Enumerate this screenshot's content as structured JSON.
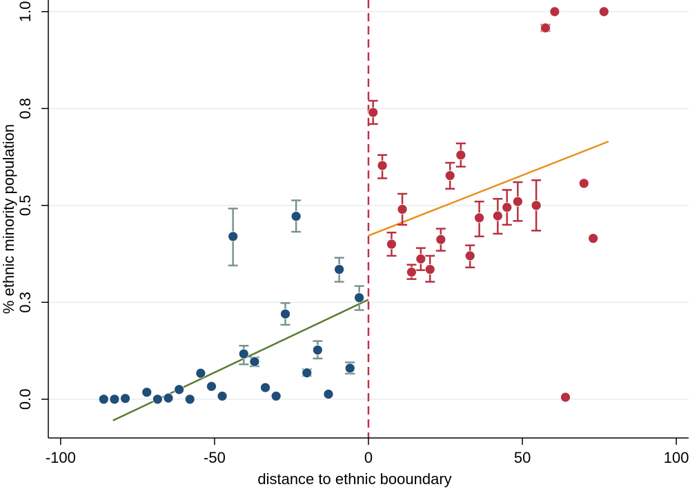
{
  "chart_data": {
    "type": "scatter",
    "title": "",
    "xlabel": "distance to ethnic booundary",
    "ylabel": "% ethnic minority population",
    "xlim": [
      -104,
      104
    ],
    "ylim": [
      -0.1,
      1.03
    ],
    "x_ticks": [
      -100,
      -50,
      0,
      50,
      100
    ],
    "x_tick_labels": [
      "-100",
      "-50",
      "0",
      "50",
      "100"
    ],
    "y_ticks": [
      0,
      0.25,
      0.5,
      0.75,
      1.0
    ],
    "y_tick_labels": [
      "0.0",
      "0.3",
      "0.5",
      "0.8",
      "1.0"
    ],
    "grid": "horizontal",
    "cutoff": 0,
    "colors": {
      "left_marker": "#1f4e79",
      "left_errorbar": "#7a9490",
      "left_fit": "#5a7a2e",
      "right_marker": "#b8303f",
      "right_errorbar": "#b8303f",
      "right_fit": "#e8901a",
      "cutoff_line": "#c0304a",
      "grid": "#e6ecef"
    },
    "series": [
      {
        "side": "left",
        "points": [
          {
            "x": -86,
            "y": 0.0,
            "lo": null,
            "hi": null
          },
          {
            "x": -82.5,
            "y": 0.0,
            "lo": null,
            "hi": null
          },
          {
            "x": -79,
            "y": 0.002,
            "lo": null,
            "hi": null
          },
          {
            "x": -72,
            "y": 0.018,
            "lo": null,
            "hi": null
          },
          {
            "x": -68.5,
            "y": 0.0,
            "lo": null,
            "hi": null
          },
          {
            "x": -65,
            "y": 0.003,
            "lo": null,
            "hi": null
          },
          {
            "x": -61.5,
            "y": 0.025,
            "lo": null,
            "hi": null
          },
          {
            "x": -58,
            "y": 0.0,
            "lo": null,
            "hi": null
          },
          {
            "x": -54.5,
            "y": 0.067,
            "lo": null,
            "hi": null
          },
          {
            "x": -51,
            "y": 0.033,
            "lo": null,
            "hi": null
          },
          {
            "x": -47.5,
            "y": 0.008,
            "lo": null,
            "hi": null
          },
          {
            "x": -44,
            "y": 0.42,
            "lo": 0.345,
            "hi": 0.492
          },
          {
            "x": -40.5,
            "y": 0.117,
            "lo": 0.09,
            "hi": 0.138
          },
          {
            "x": -37,
            "y": 0.097,
            "lo": 0.085,
            "hi": 0.108
          },
          {
            "x": -33.5,
            "y": 0.03,
            "lo": null,
            "hi": null
          },
          {
            "x": -30,
            "y": 0.008,
            "lo": null,
            "hi": null
          },
          {
            "x": -27,
            "y": 0.22,
            "lo": 0.192,
            "hi": 0.248
          },
          {
            "x": -23.5,
            "y": 0.472,
            "lo": 0.432,
            "hi": 0.513
          },
          {
            "x": -20,
            "y": 0.068,
            "lo": 0.06,
            "hi": 0.077
          },
          {
            "x": -16.5,
            "y": 0.127,
            "lo": 0.105,
            "hi": 0.15
          },
          {
            "x": -13,
            "y": 0.013,
            "lo": null,
            "hi": null
          },
          {
            "x": -9.5,
            "y": 0.335,
            "lo": 0.303,
            "hi": 0.365
          },
          {
            "x": -6,
            "y": 0.08,
            "lo": 0.066,
            "hi": 0.095
          },
          {
            "x": -3,
            "y": 0.262,
            "lo": 0.23,
            "hi": 0.292
          }
        ],
        "fit": {
          "x": [
            -83,
            0
          ],
          "y": [
            -0.055,
            0.257
          ]
        }
      },
      {
        "side": "right",
        "points": [
          {
            "x": 1.5,
            "y": 0.74,
            "lo": 0.71,
            "hi": 0.77
          },
          {
            "x": 4.5,
            "y": 0.603,
            "lo": 0.57,
            "hi": 0.63
          },
          {
            "x": 7.5,
            "y": 0.4,
            "lo": 0.37,
            "hi": 0.43
          },
          {
            "x": 11,
            "y": 0.49,
            "lo": 0.45,
            "hi": 0.53
          },
          {
            "x": 14,
            "y": 0.328,
            "lo": 0.31,
            "hi": 0.347
          },
          {
            "x": 17,
            "y": 0.362,
            "lo": 0.333,
            "hi": 0.39
          },
          {
            "x": 20,
            "y": 0.335,
            "lo": 0.303,
            "hi": 0.37
          },
          {
            "x": 23.5,
            "y": 0.412,
            "lo": 0.383,
            "hi": 0.44
          },
          {
            "x": 26.5,
            "y": 0.577,
            "lo": 0.543,
            "hi": 0.61
          },
          {
            "x": 30,
            "y": 0.63,
            "lo": 0.6,
            "hi": 0.66
          },
          {
            "x": 33,
            "y": 0.37,
            "lo": 0.34,
            "hi": 0.397
          },
          {
            "x": 36,
            "y": 0.468,
            "lo": 0.42,
            "hi": 0.51
          },
          {
            "x": 42,
            "y": 0.473,
            "lo": 0.427,
            "hi": 0.517
          },
          {
            "x": 45,
            "y": 0.495,
            "lo": 0.45,
            "hi": 0.54
          },
          {
            "x": 48.5,
            "y": 0.51,
            "lo": 0.46,
            "hi": 0.56
          },
          {
            "x": 54.5,
            "y": 0.5,
            "lo": 0.435,
            "hi": 0.565
          },
          {
            "x": 57.5,
            "y": 0.958,
            "lo": 0.95,
            "hi": 0.966
          },
          {
            "x": 60.5,
            "y": 1.0,
            "lo": null,
            "hi": null
          },
          {
            "x": 64,
            "y": 0.005,
            "lo": null,
            "hi": null
          },
          {
            "x": 70,
            "y": 0.557,
            "lo": null,
            "hi": null
          },
          {
            "x": 73,
            "y": 0.415,
            "lo": null,
            "hi": null
          },
          {
            "x": 76.5,
            "y": 1.0,
            "lo": null,
            "hi": null
          }
        ],
        "fit": {
          "x": [
            0,
            78
          ],
          "y": [
            0.422,
            0.665
          ]
        }
      }
    ]
  }
}
